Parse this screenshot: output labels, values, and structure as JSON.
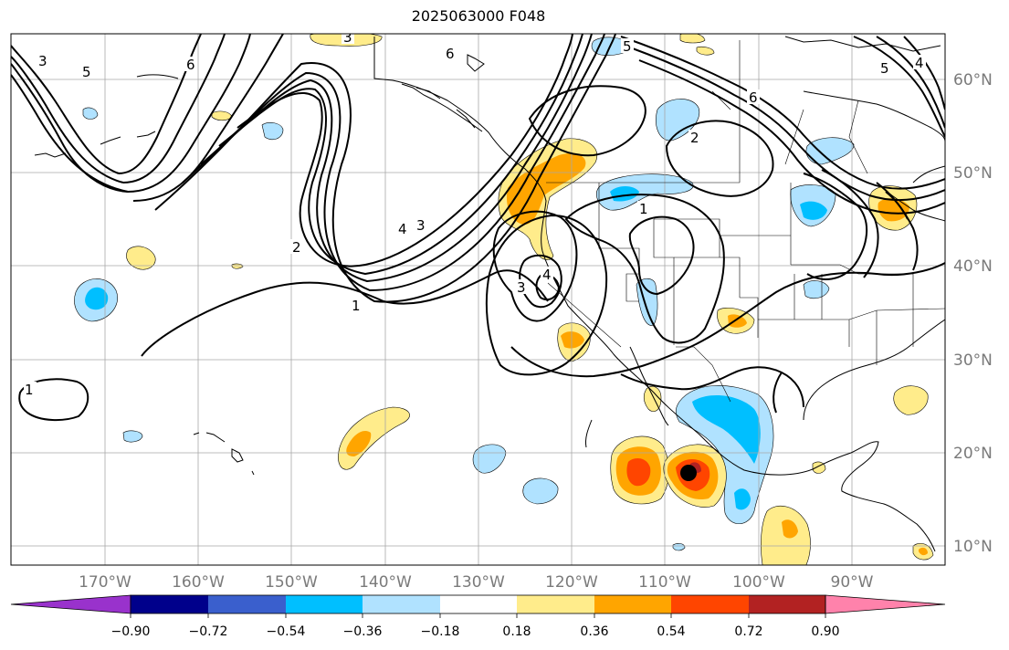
{
  "title": "2025063000 F048",
  "lon_labels": [
    "170°W",
    "160°W",
    "150°W",
    "140°W",
    "130°W",
    "120°W",
    "110°W",
    "100°W",
    "90°W"
  ],
  "lat_labels": [
    "60°N",
    "50°N",
    "40°N",
    "30°N",
    "20°N",
    "10°N"
  ],
  "contour_labels": [
    "1",
    "2",
    "3",
    "4",
    "5",
    "6"
  ],
  "colorbar": {
    "ticks": [
      "−0.90",
      "−0.72",
      "−0.54",
      "−0.36",
      "−0.18",
      "0.18",
      "0.36",
      "0.54",
      "0.72",
      "0.90"
    ],
    "colors": [
      "#9932cc",
      "#00008b",
      "#3a5fcd",
      "#00bfff",
      "#b0e2ff",
      "#ffffff",
      "#ffec8b",
      "#ffa500",
      "#ff4500",
      "#b22222",
      "#ff82ab"
    ]
  },
  "storm_marker": "black-dot"
}
